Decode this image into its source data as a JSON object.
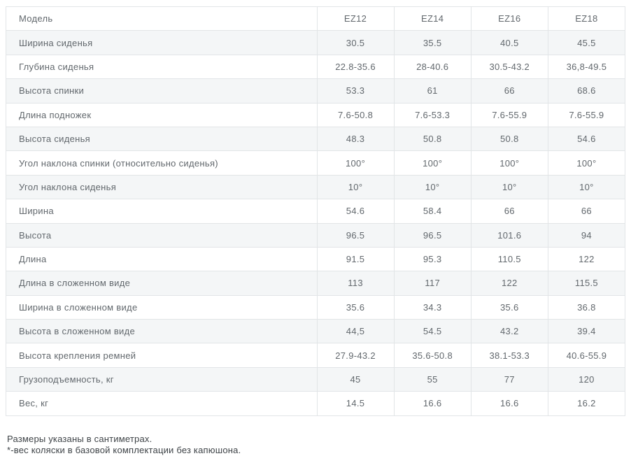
{
  "table": {
    "header": {
      "label": "Модель",
      "models": [
        "EZ12",
        "EZ14",
        "EZ16",
        "EZ18"
      ]
    },
    "rows": [
      {
        "label": "Ширина сиденья",
        "values": [
          "30.5",
          "35.5",
          "40.5",
          "45.5"
        ]
      },
      {
        "label": "Глубина сиденья",
        "values": [
          "22.8-35.6",
          "28-40.6",
          "30.5-43.2",
          "36,8-49.5"
        ]
      },
      {
        "label": "Высота спинки",
        "values": [
          "53.3",
          "61",
          "66",
          "68.6"
        ]
      },
      {
        "label": "Длина подножек",
        "values": [
          "7.6-50.8",
          "7.6-53.3",
          "7.6-55.9",
          "7.6-55.9"
        ]
      },
      {
        "label": "Высота сиденья",
        "values": [
          "48.3",
          "50.8",
          "50.8",
          "54.6"
        ]
      },
      {
        "label": "Угол наклона спинки (относительно сиденья)",
        "values": [
          "100°",
          "100°",
          "100°",
          "100°"
        ]
      },
      {
        "label": "Угол наклона сиденья",
        "values": [
          "10°",
          "10°",
          "10°",
          "10°"
        ]
      },
      {
        "label": "Ширина",
        "values": [
          "54.6",
          "58.4",
          "66",
          "66"
        ]
      },
      {
        "label": "Высота",
        "values": [
          "96.5",
          "96.5",
          "101.6",
          "94"
        ]
      },
      {
        "label": "Длина",
        "values": [
          "91.5",
          "95.3",
          "110.5",
          "122"
        ]
      },
      {
        "label": "Длина в сложенном виде",
        "values": [
          "113",
          "117",
          "122",
          "115.5"
        ]
      },
      {
        "label": "Ширина в сложенном виде",
        "values": [
          "35.6",
          "34.3",
          "35.6",
          "36.8"
        ]
      },
      {
        "label": "Высота в сложенном виде",
        "values": [
          "44,5",
          "54.5",
          "43.2",
          "39.4"
        ]
      },
      {
        "label": "Высота крепления ремней",
        "values": [
          "27.9-43.2",
          "35.6-50.8",
          "38.1-53.3",
          "40.6-55.9"
        ]
      },
      {
        "label": "Грузоподъемность, кг",
        "values": [
          "45",
          "55",
          "77",
          "120"
        ]
      },
      {
        "label": "Вес, кг",
        "values": [
          "14.5",
          "16.6",
          "16.6",
          "16.2"
        ]
      }
    ]
  },
  "footnotes": {
    "line1": "Размеры указаны в сантиметрах.",
    "line2": "*-вес коляски в базовой комплектации без капюшона."
  },
  "colors": {
    "stripe": "#f4f6f7",
    "border": "#e2e5e7",
    "text": "#62686d",
    "footer_text": "#3e4347"
  }
}
